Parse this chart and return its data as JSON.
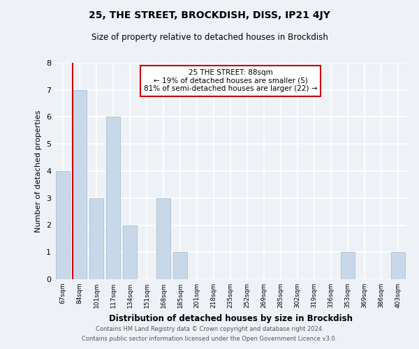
{
  "title": "25, THE STREET, BROCKDISH, DISS, IP21 4JY",
  "subtitle": "Size of property relative to detached houses in Brockdish",
  "xlabel": "Distribution of detached houses by size in Brockdish",
  "ylabel": "Number of detached properties",
  "categories": [
    "67sqm",
    "84sqm",
    "101sqm",
    "117sqm",
    "134sqm",
    "151sqm",
    "168sqm",
    "185sqm",
    "201sqm",
    "218sqm",
    "235sqm",
    "252sqm",
    "269sqm",
    "285sqm",
    "302sqm",
    "319sqm",
    "336sqm",
    "353sqm",
    "369sqm",
    "386sqm",
    "403sqm"
  ],
  "values": [
    4,
    7,
    3,
    6,
    2,
    0,
    3,
    1,
    0,
    0,
    0,
    0,
    0,
    0,
    0,
    0,
    0,
    1,
    0,
    0,
    1
  ],
  "bar_color": "#c8d8e8",
  "bar_edge_color": "#a0b8cc",
  "marker_color": "#cc0000",
  "annotation_line1": "25 THE STREET: 88sqm",
  "annotation_line2": "← 19% of detached houses are smaller (5)",
  "annotation_line3": "81% of semi-detached houses are larger (22) →",
  "ylim": [
    0,
    8
  ],
  "yticks": [
    0,
    1,
    2,
    3,
    4,
    5,
    6,
    7,
    8
  ],
  "background_color": "#eef2f7",
  "plot_bg_color": "#eef2f7",
  "footer_line1": "Contains HM Land Registry data © Crown copyright and database right 2024.",
  "footer_line2": "Contains public sector information licensed under the Open Government Licence v3.0."
}
